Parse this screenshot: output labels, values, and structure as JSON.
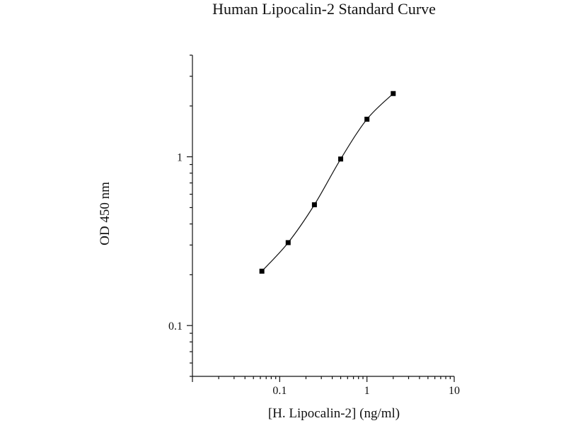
{
  "chart_data": {
    "type": "scatter",
    "title": "Human Lipocalin-2 Standard Curve",
    "xlabel": "[H. Lipocalin-2] (ng/ml)",
    "ylabel": "OD 450 nm",
    "x_scale": "log",
    "y_scale": "log",
    "xlim": [
      0.01,
      10
    ],
    "ylim": [
      0.05,
      4.0
    ],
    "x_ticks": [
      {
        "value": 0.1,
        "label": "0.1"
      },
      {
        "value": 1,
        "label": "1"
      },
      {
        "value": 10,
        "label": "10"
      }
    ],
    "y_ticks": [
      {
        "value": 0.1,
        "label": "0.1"
      },
      {
        "value": 1,
        "label": "1"
      }
    ],
    "grid": false,
    "fitted_curve": true,
    "series": [
      {
        "x": [
          0.0625,
          0.125,
          0.25,
          0.5,
          1.0,
          2.0
        ],
        "y": [
          0.21,
          0.31,
          0.52,
          0.97,
          1.67,
          2.37
        ]
      }
    ]
  }
}
